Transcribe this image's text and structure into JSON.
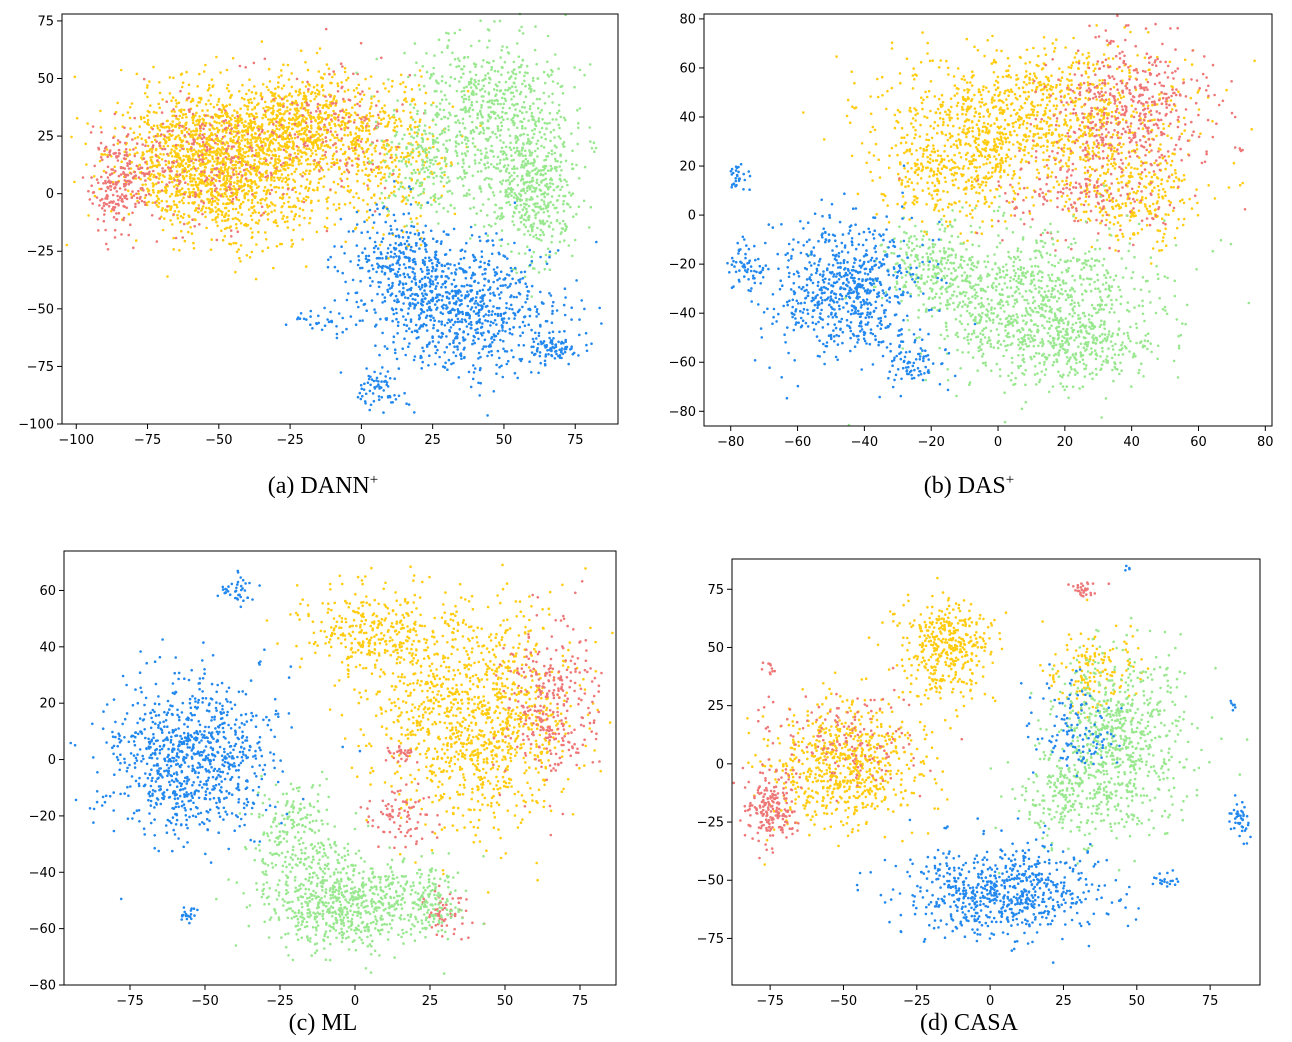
{
  "chart_data": [
    {
      "type": "scatter",
      "caption": "(a)  DANN",
      "caption_sup": "+",
      "xlim": [
        -105,
        90
      ],
      "ylim": [
        -100,
        78
      ],
      "xticks": [
        -100,
        -75,
        -50,
        -25,
        0,
        25,
        50,
        75
      ],
      "yticks": [
        -100,
        -75,
        -50,
        -25,
        0,
        25,
        50,
        75
      ],
      "series": [
        {
          "color": "#ffcc11",
          "clusters": [
            [
              -45,
              10,
              32,
              28,
              1200
            ],
            [
              -20,
              30,
              25,
              20,
              700
            ],
            [
              -60,
              20,
              25,
              25,
              500
            ],
            [
              10,
              15,
              20,
              30,
              300
            ]
          ]
        },
        {
          "color": "#ee7777",
          "clusters": [
            [
              -85,
              5,
              10,
              15,
              220
            ],
            [
              -55,
              15,
              28,
              25,
              250
            ],
            [
              -10,
              30,
              25,
              25,
              150
            ]
          ]
        },
        {
          "color": "#99e88f",
          "clusters": [
            [
              45,
              35,
              25,
              30,
              650
            ],
            [
              60,
              0,
              15,
              25,
              450
            ],
            [
              20,
              10,
              15,
              20,
              150
            ]
          ]
        },
        {
          "color": "#2288ee",
          "clusters": [
            [
              35,
              -50,
              30,
              25,
              800
            ],
            [
              15,
              -30,
              18,
              20,
              300
            ],
            [
              68,
              -68,
              8,
              5,
              70
            ],
            [
              5,
              -85,
              8,
              8,
              60
            ],
            [
              -15,
              -55,
              10,
              5,
              30
            ]
          ]
        }
      ]
    },
    {
      "type": "scatter",
      "caption": "(b)  DAS",
      "caption_sup": "+",
      "xlim": [
        -88,
        82
      ],
      "ylim": [
        -86,
        82
      ],
      "xticks": [
        -80,
        -60,
        -40,
        -20,
        0,
        20,
        40,
        60,
        80
      ],
      "yticks": [
        -80,
        -60,
        -40,
        -20,
        0,
        20,
        40,
        60,
        80
      ],
      "series": [
        {
          "color": "#ffcc11",
          "clusters": [
            [
              10,
              40,
              40,
              25,
              1100
            ],
            [
              -15,
              15,
              20,
              20,
              300
            ],
            [
              40,
              10,
              20,
              20,
              300
            ]
          ]
        },
        {
          "color": "#ee7777",
          "clusters": [
            [
              40,
              45,
              20,
              25,
              450
            ],
            [
              25,
              10,
              25,
              20,
              200
            ],
            [
              72,
              27,
              2,
              2,
              5
            ]
          ]
        },
        {
          "color": "#99e88f",
          "clusters": [
            [
              10,
              -35,
              35,
              25,
              900
            ],
            [
              20,
              -55,
              20,
              15,
              300
            ],
            [
              -20,
              -20,
              15,
              15,
              200
            ]
          ]
        },
        {
          "color": "#2288ee",
          "clusters": [
            [
              -45,
              -30,
              20,
              25,
              700
            ],
            [
              -75,
              -20,
              5,
              10,
              60
            ],
            [
              -78,
              15,
              3,
              5,
              30
            ],
            [
              -25,
              -60,
              10,
              10,
              80
            ]
          ]
        }
      ]
    },
    {
      "type": "scatter",
      "caption": "(c)  ML",
      "caption_sup": "",
      "xlim": [
        -97,
        87
      ],
      "ylim": [
        -80,
        74
      ],
      "xticks": [
        -75,
        -50,
        -25,
        0,
        25,
        50,
        75
      ],
      "yticks": [
        -80,
        -60,
        -40,
        -20,
        0,
        20,
        40,
        60
      ],
      "series": [
        {
          "color": "#ffcc11",
          "clusters": [
            [
              40,
              15,
              30,
              35,
              1200
            ],
            [
              5,
              45,
              20,
              15,
              300
            ]
          ]
        },
        {
          "color": "#ee7777",
          "clusters": [
            [
              65,
              20,
              15,
              25,
              300
            ],
            [
              15,
              -20,
              10,
              10,
              80
            ],
            [
              30,
              -55,
              8,
              8,
              60
            ],
            [
              15,
              2,
              4,
              3,
              30
            ]
          ]
        },
        {
          "color": "#99e88f",
          "clusters": [
            [
              -5,
              -50,
              25,
              15,
              700
            ],
            [
              -20,
              -25,
              15,
              15,
              200
            ],
            [
              25,
              -50,
              10,
              12,
              150
            ]
          ]
        },
        {
          "color": "#2288ee",
          "clusters": [
            [
              -55,
              0,
              25,
              25,
              900
            ],
            [
              -40,
              60,
              5,
              5,
              40
            ],
            [
              -55,
              -55,
              3,
              3,
              20
            ]
          ]
        }
      ]
    },
    {
      "type": "scatter",
      "caption": "(d)  CASA",
      "caption_sup": "",
      "xlim": [
        -88,
        92
      ],
      "ylim": [
        -95,
        88
      ],
      "xticks": [
        -75,
        -50,
        -25,
        0,
        25,
        50,
        75
      ],
      "yticks": [
        -75,
        -50,
        -25,
        0,
        25,
        50,
        75
      ],
      "series": [
        {
          "color": "#ffcc11",
          "clusters": [
            [
              -50,
              0,
              25,
              25,
              700
            ],
            [
              -15,
              50,
              15,
              20,
              400
            ],
            [
              35,
              40,
              15,
              15,
              150
            ]
          ]
        },
        {
          "color": "#ee7777",
          "clusters": [
            [
              -75,
              -20,
              8,
              15,
              200
            ],
            [
              -50,
              10,
              25,
              20,
              150
            ],
            [
              32,
              75,
              5,
              3,
              30
            ],
            [
              -75,
              40,
              3,
              3,
              10
            ]
          ]
        },
        {
          "color": "#99e88f",
          "clusters": [
            [
              45,
              10,
              20,
              35,
              700
            ],
            [
              25,
              -15,
              15,
              20,
              200
            ]
          ]
        },
        {
          "color": "#2288ee",
          "clusters": [
            [
              5,
              -55,
              30,
              18,
              700
            ],
            [
              85,
              -25,
              3,
              8,
              40
            ],
            [
              83,
              25,
              1,
              2,
              6
            ],
            [
              60,
              -50,
              5,
              3,
              20
            ],
            [
              47,
              84,
              1,
              1,
              4
            ],
            [
              30,
              15,
              15,
              20,
              120
            ]
          ]
        }
      ]
    }
  ]
}
